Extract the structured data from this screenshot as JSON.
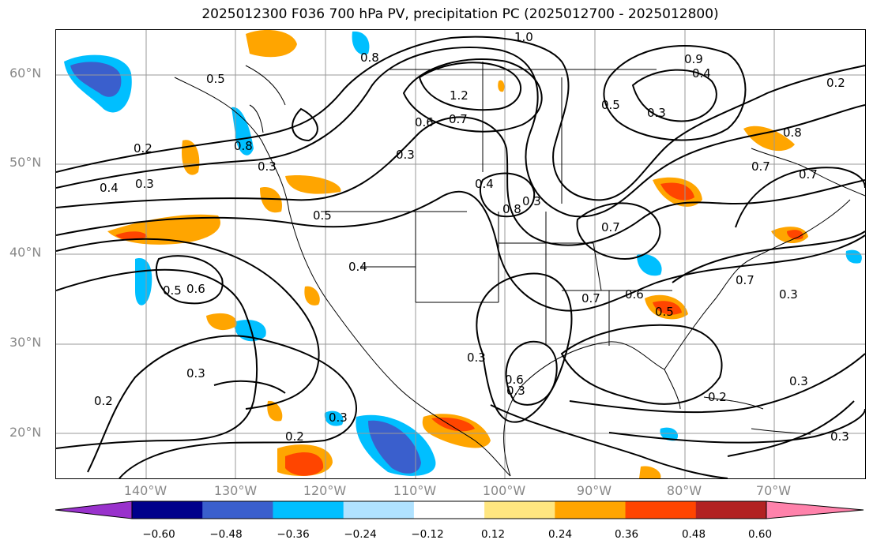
{
  "title": "2025012300 F036 700 hPa PV, precipitation PC (2025012700 - 2025012800)",
  "map": {
    "projection": "lat-lon",
    "lon_range": [
      -150,
      -60
    ],
    "lat_range": [
      15,
      65
    ],
    "lat_labels": [
      "60°N",
      "50°N",
      "40°N",
      "30°N",
      "20°N"
    ],
    "lon_labels": [
      "140°W",
      "130°W",
      "120°W",
      "110°W",
      "100°W",
      "90°W",
      "80°W",
      "70°W"
    ],
    "contour_labels": [
      "1.0",
      "0.8",
      "1.2",
      "0.6",
      "0.7",
      "0.5",
      "0.3",
      "0.4",
      "0.8",
      "0.3",
      "0.9",
      "0.4",
      "0.5",
      "0.8",
      "0.7",
      "0.7",
      "0.2",
      "0.3",
      "0.4",
      "0.5",
      "0.4",
      "0.5",
      "0.6",
      "0.8",
      "0.7",
      "0.7",
      "0.6",
      "0.5",
      "0.7",
      "0.3",
      "0.3",
      "0.3",
      "0.3",
      "0.3",
      "0.6",
      "0.3",
      "0.2",
      "0.3",
      "0.2",
      "0.2",
      "0.3",
      "0.2",
      "0.3"
    ]
  },
  "colorbar": {
    "ticks": [
      "−0.60",
      "−0.48",
      "−0.36",
      "−0.24",
      "−0.12",
      "0.12",
      "0.24",
      "0.36",
      "0.48",
      "0.60"
    ],
    "colors": [
      "#9932cc",
      "#00008b",
      "#3a5fcd",
      "#00bfff",
      "#b0e2ff",
      "#ffffff",
      "#ffe680",
      "#ffa500",
      "#ff4500",
      "#b22222",
      "#ff82ab"
    ]
  }
}
